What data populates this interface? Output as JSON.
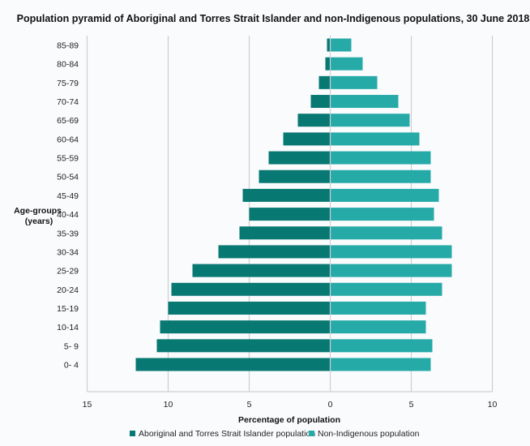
{
  "chart_data": {
    "type": "bar",
    "orientation": "horizontal",
    "layout": "population-pyramid",
    "title": "Population pyramid of Aboriginal and Torres Strait Islander and non-Indigenous populations, 30 June 2018",
    "xlabel": "Percentage of population",
    "ylabel": "Age-groups (years)",
    "ylabel_lines": [
      "Age-groups",
      "(years)"
    ],
    "xlim": [
      -15,
      10
    ],
    "x_ticks": [
      -15,
      -10,
      -5,
      0,
      5,
      10
    ],
    "x_tick_labels": [
      "15",
      "10",
      "5",
      "0",
      "5",
      "10"
    ],
    "grid": true,
    "legend_position": "bottom",
    "categories": [
      "85-89",
      "80-84",
      "75-79",
      "70-74",
      "65-69",
      "60-64",
      "55-59",
      "50-54",
      "45-49",
      "40-44",
      "35-39",
      "30-34",
      "25-29",
      "20-24",
      "15-19",
      "10-14",
      "5- 9",
      "0- 4"
    ],
    "series": [
      {
        "name": "Aboriginal and Torres Strait Islander population",
        "side": "left",
        "color": "#087872",
        "values": [
          0.2,
          0.3,
          0.7,
          1.2,
          2.0,
          2.9,
          3.8,
          4.4,
          5.4,
          5.0,
          5.6,
          6.9,
          8.5,
          9.8,
          10.0,
          10.5,
          10.7,
          12.0
        ]
      },
      {
        "name": "Non-Indigenous population",
        "side": "right",
        "color": "#26aaa8",
        "values": [
          1.3,
          2.0,
          2.9,
          4.2,
          4.9,
          5.5,
          6.2,
          6.2,
          6.7,
          6.4,
          6.9,
          7.5,
          7.5,
          6.9,
          5.9,
          5.9,
          6.3,
          6.2
        ]
      }
    ]
  }
}
